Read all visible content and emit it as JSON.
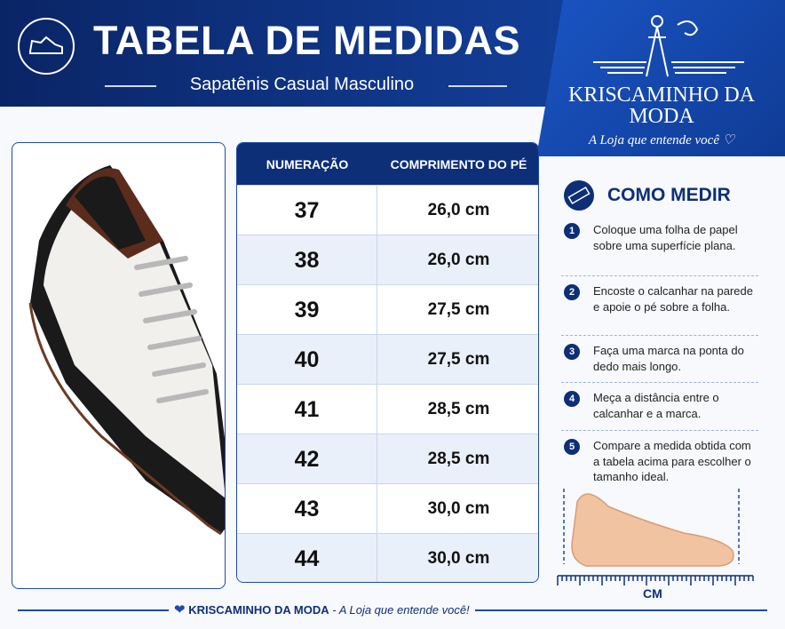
{
  "header": {
    "title": "TABELA DE MEDIDAS",
    "subtitle": "Sapatênis Casual Masculino"
  },
  "brand": {
    "name_line1": "KRISCAMINHO DA",
    "name_line2": "MODA",
    "tagline": "A Loja que entende você ♡"
  },
  "table": {
    "columns": [
      "NUMERAÇÃO",
      "COMPRIMENTO DO PÉ"
    ],
    "rows": [
      [
        "37",
        "26,0 cm"
      ],
      [
        "38",
        "26,0 cm"
      ],
      [
        "39",
        "27,5 cm"
      ],
      [
        "40",
        "27,5 cm"
      ],
      [
        "41",
        "28,5 cm"
      ],
      [
        "42",
        "28,5 cm"
      ],
      [
        "43",
        "30,0 cm"
      ],
      [
        "44",
        "30,0 cm"
      ]
    ]
  },
  "how_to": {
    "title": "COMO MEDIR",
    "steps": [
      {
        "number": "1",
        "text": "Coloque uma folha de papel sobre uma superfície plana."
      },
      {
        "number": "2",
        "text": "Encoste o calcanhar na parede e apoie o pé sobre a folha."
      },
      {
        "number": "3",
        "text": "Faça uma marca na ponta do dedo mais longo."
      },
      {
        "number": "4",
        "text": "Meça a distância entre o calcanhar e a marca."
      },
      {
        "number": "5",
        "text": "Compare a medida obtida com a tabela acima para escolher o tamanho ideal."
      }
    ]
  },
  "ruler_label": "CM",
  "footer": {
    "brand": "KRISCAMINHO DA MODA",
    "tagline": "- A Loja que entende você!"
  }
}
